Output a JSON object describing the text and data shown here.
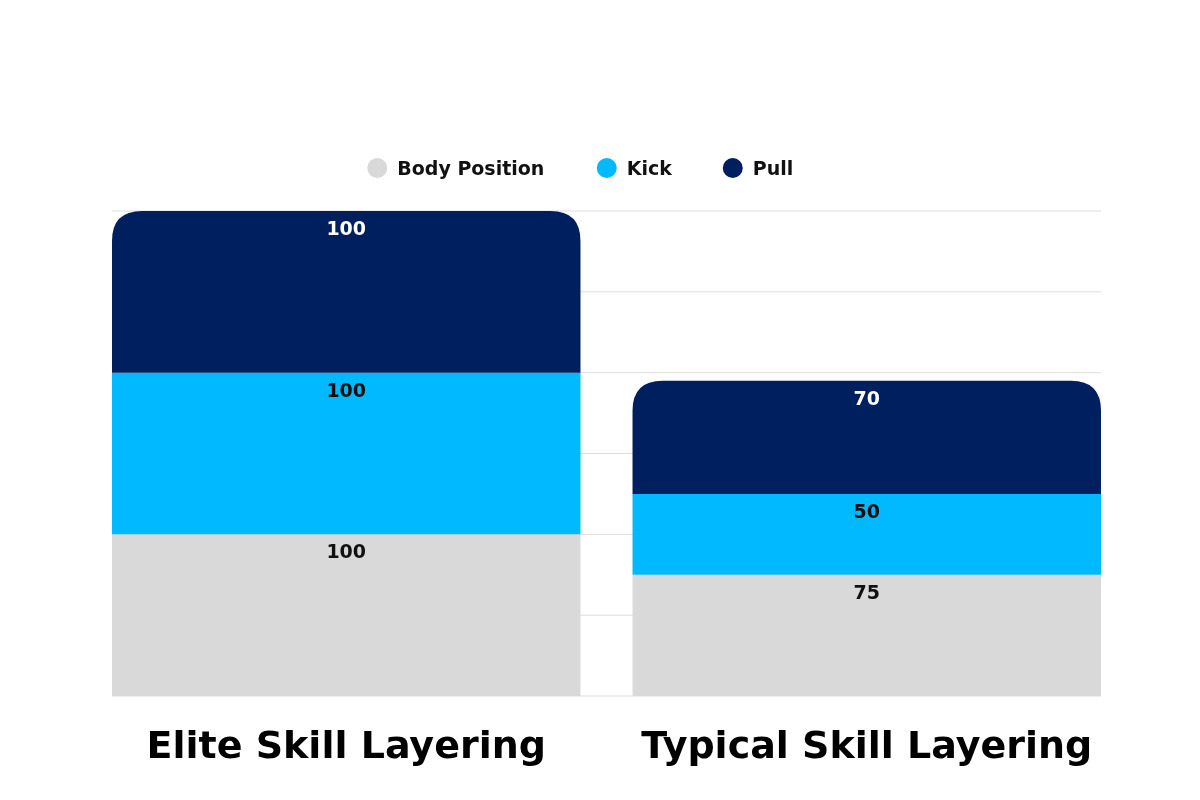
{
  "chart_data": {
    "type": "bar",
    "stacked": true,
    "categories": [
      "Elite Skill Layering",
      "Typical Skill Layering"
    ],
    "series": [
      {
        "name": "Body Position",
        "color": "#d9d9d9",
        "values": [
          100,
          75
        ]
      },
      {
        "name": "Kick",
        "color": "#00b9ff",
        "values": [
          100,
          50
        ]
      },
      {
        "name": "Pull",
        "color": "#001f5f",
        "values": [
          100,
          70
        ]
      }
    ],
    "ylim": [
      0,
      300
    ],
    "yticks": [
      {
        "value": 0,
        "label": null
      },
      {
        "value": 50,
        "label": null
      },
      {
        "value": 100,
        "label": null
      },
      {
        "value": 150,
        "label": null
      },
      {
        "value": 200,
        "label": null
      },
      {
        "value": 250,
        "label": null
      },
      {
        "value": 300,
        "label": null
      }
    ],
    "grid": "y",
    "legend": "top",
    "tick_labels": "x",
    "data_labels": true
  }
}
